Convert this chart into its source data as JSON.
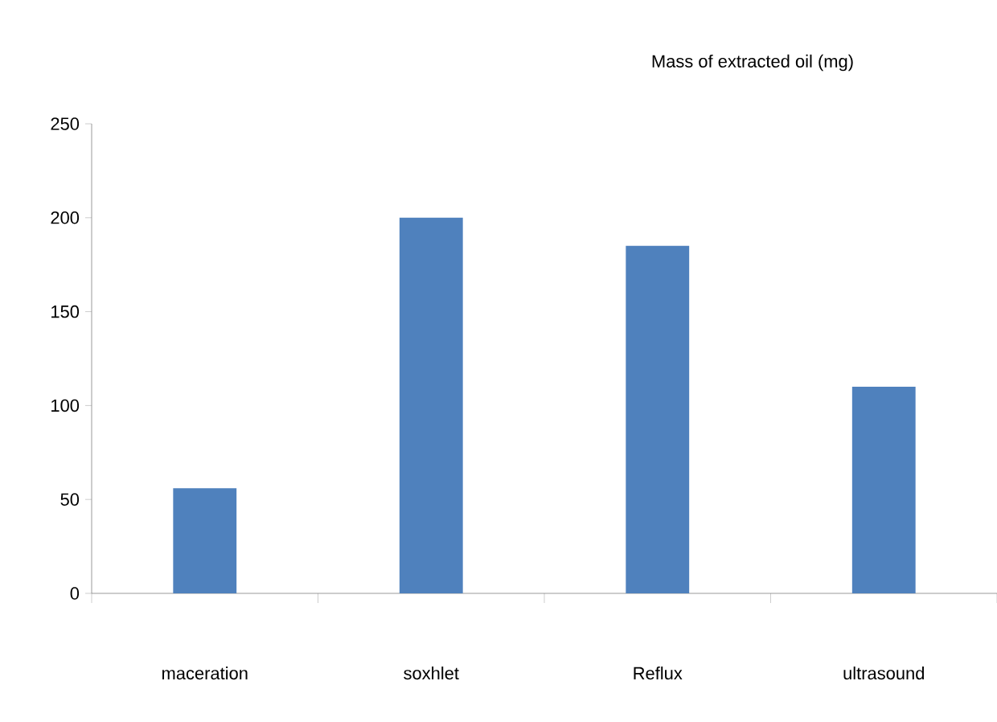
{
  "chart_data": {
    "type": "bar",
    "title": "Mass of extracted oil (mg)",
    "categories": [
      "maceration",
      "soxhlet",
      "Reflux",
      "ultrasound"
    ],
    "values": [
      56,
      200,
      185,
      110
    ],
    "color": "#4f81bd",
    "ylim": [
      0,
      250
    ],
    "yticks": [
      0,
      50,
      100,
      150,
      200,
      250
    ],
    "grid": false
  }
}
